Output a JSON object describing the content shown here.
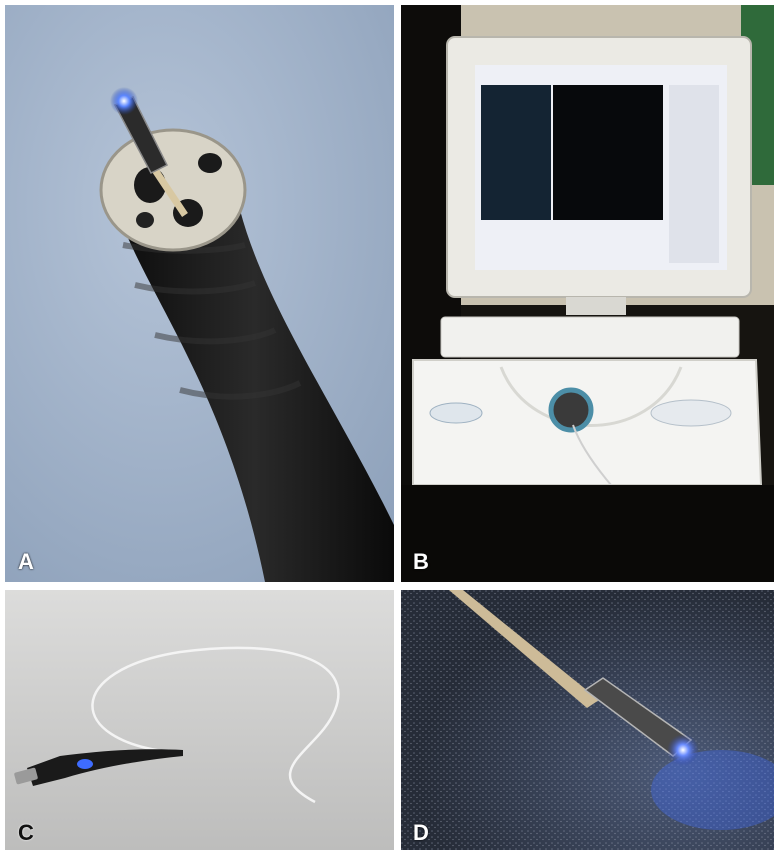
{
  "figure": {
    "panels": [
      {
        "id": "A",
        "label": "A"
      },
      {
        "id": "B",
        "label": "B"
      },
      {
        "id": "C",
        "label": "C"
      },
      {
        "id": "D",
        "label": "D"
      }
    ]
  },
  "colors": {
    "background_a": "#a7b8cf",
    "scope_black": "#151515",
    "led_blue": "#3e6cff",
    "monitor_white": "#ebeae4",
    "lab_dark": "#161410",
    "studio_grey": "#cfcfcf",
    "granite_dark": "#2e3544",
    "fiber_tan": "#cdbb98"
  }
}
